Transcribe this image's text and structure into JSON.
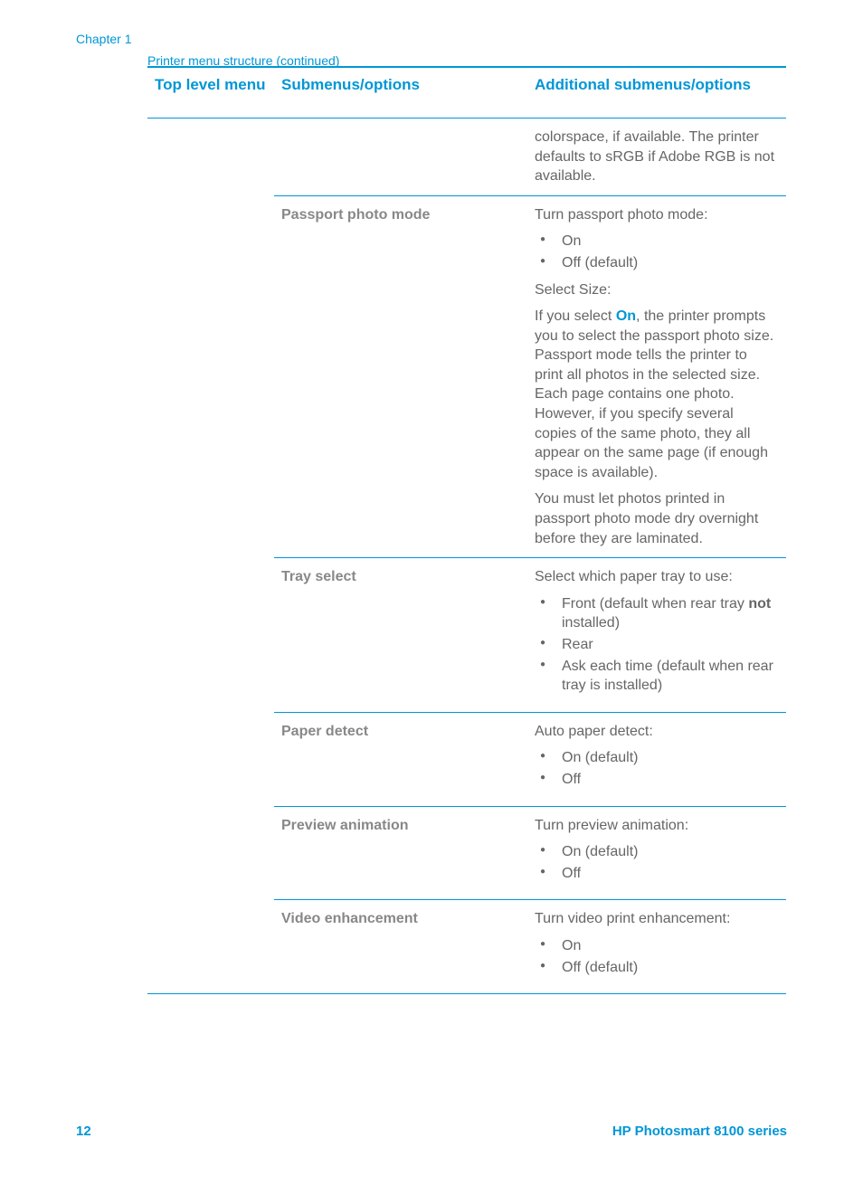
{
  "chapter": "Chapter 1",
  "table_caption": "Printer menu structure (continued)",
  "headers": {
    "col1": "Top level menu",
    "col2": "Submenus/options",
    "col3": "Additional submenus/options"
  },
  "rows": {
    "r0": {
      "col1": "",
      "col2": "",
      "col3_p1": "colorspace, if available. The printer defaults to sRGB if Adobe RGB is not available."
    },
    "r1": {
      "col2": "Passport photo mode",
      "p1": "Turn passport photo mode:",
      "li1": "On",
      "li2": "Off (default)",
      "p2": "Select Size:",
      "p3a": "If you select ",
      "p3b": "On",
      "p3c": ", the printer prompts you to select the passport photo size. Passport mode tells the printer to print all photos in the selected size. Each page contains one photo. However, if you specify several copies of the same photo, they all appear on the same page (if enough space is available).",
      "p4": "You must let photos printed in passport photo mode dry overnight before they are laminated."
    },
    "r2": {
      "col2": "Tray select",
      "p1": "Select which paper tray to use:",
      "li1a": "Front (default when rear tray ",
      "li1b": "not",
      "li1c": " installed)",
      "li2": "Rear",
      "li3": "Ask each time (default when rear tray is installed)"
    },
    "r3": {
      "col2": "Paper detect",
      "p1": "Auto paper detect:",
      "li1": "On (default)",
      "li2": "Off"
    },
    "r4": {
      "col2": "Preview animation",
      "p1": "Turn preview animation:",
      "li1": "On (default)",
      "li2": "Off"
    },
    "r5": {
      "col2": "Video enhancement",
      "p1": "Turn video print enhancement:",
      "li1": "On",
      "li2": "Off (default)"
    }
  },
  "footer": {
    "page": "12",
    "product": "HP Photosmart 8100 series"
  },
  "colors": {
    "accent": "#0096d6",
    "text": "#666666",
    "muted": "#888888"
  }
}
